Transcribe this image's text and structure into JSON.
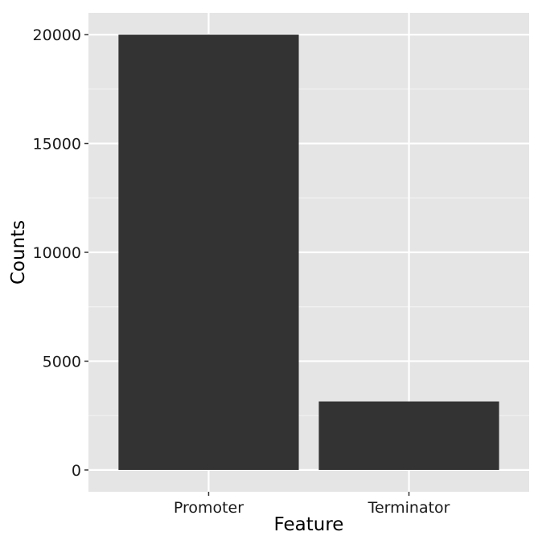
{
  "chart_data": {
    "type": "bar",
    "categories": [
      "Promoter",
      "Terminator"
    ],
    "values": [
      20000,
      3150
    ],
    "title": "",
    "xlabel": "Feature",
    "ylabel": "Counts",
    "ylim": [
      -1000,
      21000
    ],
    "yticks": [
      "0",
      "5000",
      "10000",
      "15000",
      "20000"
    ],
    "ytick_values": [
      0,
      5000,
      10000,
      15000,
      20000
    ],
    "grid": true,
    "colors": {
      "bar": "#333333",
      "panel": "#e5e5e5",
      "grid_major": "#ffffff",
      "grid_minor": "#f2f2f2",
      "tick": "#333333"
    }
  }
}
